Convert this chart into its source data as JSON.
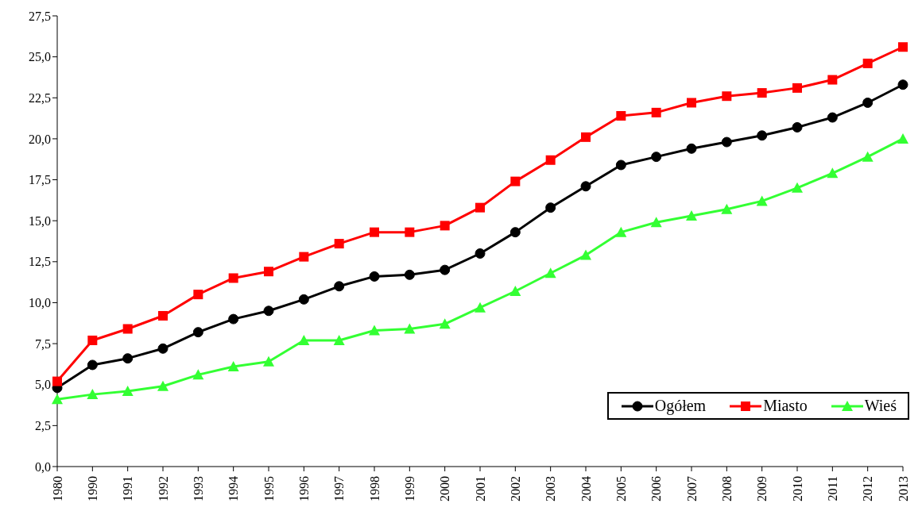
{
  "chart_data": {
    "type": "line",
    "categories": [
      "1980",
      "1990",
      "1991",
      "1992",
      "1993",
      "1994",
      "1995",
      "1996",
      "1997",
      "1998",
      "1999",
      "2000",
      "2001",
      "2002",
      "2003",
      "2004",
      "2005",
      "2006",
      "2007",
      "2008",
      "2009",
      "2010",
      "2011",
      "2012",
      "2013"
    ],
    "series": [
      {
        "name": "Ogółem",
        "color": "#000000",
        "marker": "circle",
        "values": [
          4.8,
          6.2,
          6.6,
          7.2,
          8.2,
          9.0,
          9.5,
          10.2,
          11.0,
          11.6,
          11.7,
          12.0,
          13.0,
          14.3,
          15.8,
          17.1,
          18.4,
          18.9,
          19.4,
          19.8,
          20.2,
          20.7,
          21.3,
          22.2,
          23.3
        ]
      },
      {
        "name": "Miasto",
        "color": "#ff0000",
        "marker": "square",
        "values": [
          5.2,
          7.7,
          8.4,
          9.2,
          10.5,
          11.5,
          11.9,
          12.8,
          13.6,
          14.3,
          14.3,
          14.7,
          15.8,
          17.4,
          18.7,
          20.1,
          21.4,
          21.6,
          22.2,
          22.6,
          22.8,
          23.1,
          23.6,
          24.6,
          25.6
        ]
      },
      {
        "name": "Wieś",
        "color": "#33ff33",
        "marker": "triangle",
        "values": [
          4.1,
          4.4,
          4.6,
          4.9,
          5.6,
          6.1,
          6.4,
          7.7,
          7.7,
          8.3,
          8.4,
          8.7,
          9.7,
          10.7,
          11.8,
          12.9,
          14.3,
          14.9,
          15.3,
          15.7,
          16.2,
          17.0,
          17.9,
          18.9,
          20.0
        ]
      }
    ],
    "ylim": [
      0,
      27.5
    ],
    "yticks": [
      {
        "value": 0,
        "label": "0,0"
      },
      {
        "value": 2.5,
        "label": "2,5"
      },
      {
        "value": 5,
        "label": "5,0"
      },
      {
        "value": 7.5,
        "label": "7,5"
      },
      {
        "value": 10,
        "label": "10,0"
      },
      {
        "value": 12.5,
        "label": "12,5"
      },
      {
        "value": 15,
        "label": "15,0"
      },
      {
        "value": 17.5,
        "label": "17,5"
      },
      {
        "value": 20,
        "label": "20,0"
      },
      {
        "value": 22.5,
        "label": "22,5"
      },
      {
        "value": 25,
        "label": "25,0"
      },
      {
        "value": 27.5,
        "label": "27,5"
      }
    ],
    "grid": false,
    "legend": "bottom right",
    "line_style": "solid"
  }
}
